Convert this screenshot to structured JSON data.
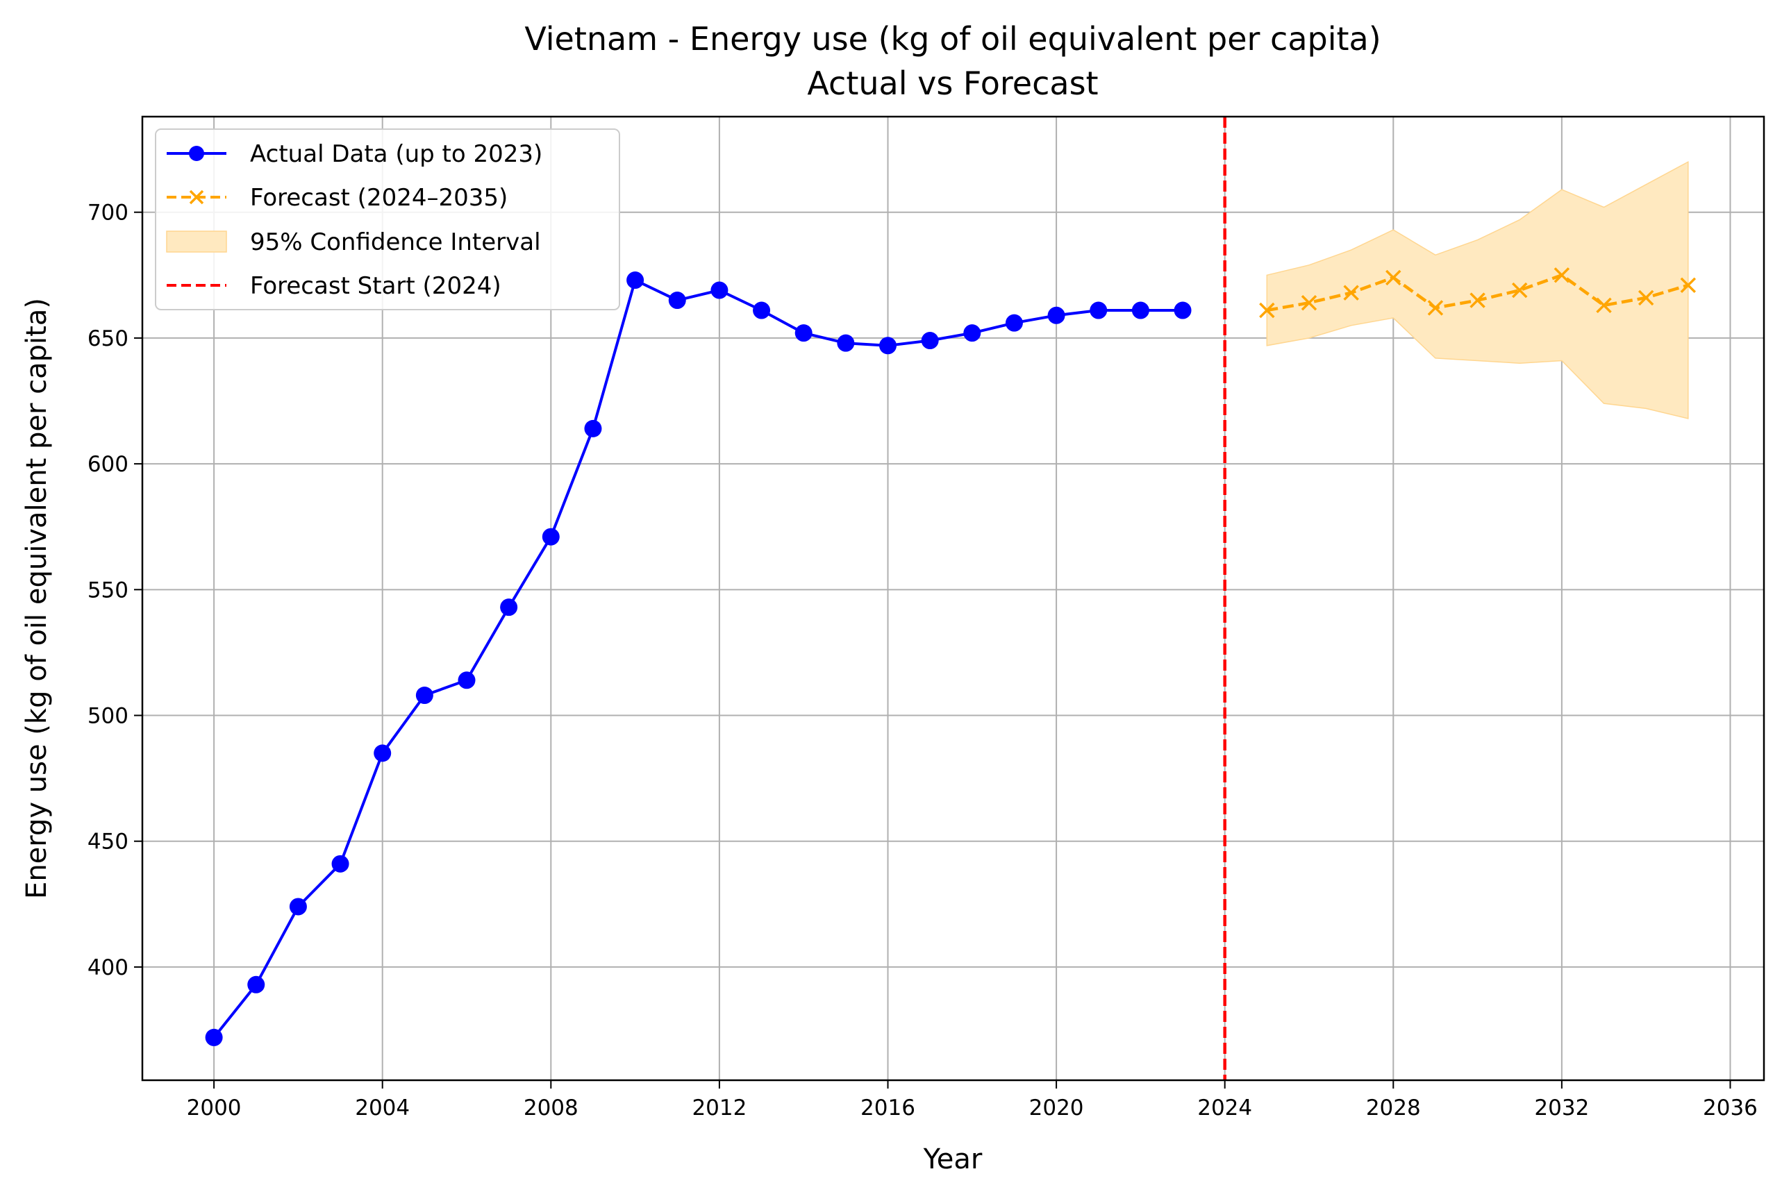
{
  "chart_data": {
    "type": "line",
    "title": "Vietnam - Energy use (kg of oil equivalent per capita)",
    "subtitle": "Actual vs Forecast",
    "xlabel": "Year",
    "ylabel": "Energy use (kg of oil equivalent per capita)",
    "xlim": [
      1998.3,
      2036.8
    ],
    "ylim": [
      355,
      738
    ],
    "x_ticks": [
      2000,
      2004,
      2008,
      2012,
      2016,
      2020,
      2024,
      2028,
      2032,
      2036
    ],
    "y_ticks": [
      400,
      450,
      500,
      550,
      600,
      650,
      700
    ],
    "grid": true,
    "legend_position": "top-left",
    "colors": {
      "actual": "#0000ff",
      "forecast": "#ffa500",
      "confidence": "#ffe9c0",
      "forecast_start": "#ff0000",
      "grid": "#b0b0b0"
    },
    "series": [
      {
        "name": "Actual Data (up to 2023)",
        "style": "solid-line-circle-markers",
        "x": [
          2000,
          2001,
          2002,
          2003,
          2004,
          2005,
          2006,
          2007,
          2008,
          2009,
          2010,
          2011,
          2012,
          2013,
          2014,
          2015,
          2016,
          2017,
          2018,
          2019,
          2020,
          2021,
          2022,
          2023
        ],
        "y": [
          372,
          393,
          424,
          441,
          485,
          508,
          514,
          543,
          571,
          614,
          673,
          665,
          669,
          661,
          652,
          648,
          647,
          649,
          652,
          656,
          659,
          661,
          661,
          661
        ]
      },
      {
        "name": "Forecast (2024–2035)",
        "style": "dashed-line-x-markers",
        "x": [
          2025,
          2026,
          2027,
          2028,
          2029,
          2030,
          2031,
          2032,
          2033,
          2034,
          2035
        ],
        "y": [
          661,
          664,
          668,
          674,
          662,
          665,
          669,
          675,
          663,
          666,
          671
        ]
      },
      {
        "name": "95% Confidence Interval",
        "style": "band",
        "x": [
          2025,
          2026,
          2027,
          2028,
          2029,
          2030,
          2031,
          2032,
          2033,
          2034,
          2035
        ],
        "lower": [
          647,
          650,
          655,
          658,
          642,
          641,
          640,
          641,
          624,
          622,
          618
        ],
        "upper": [
          675,
          679,
          685,
          693,
          683,
          689,
          697,
          709,
          702,
          711,
          720
        ]
      },
      {
        "name": "Forecast Start (2024)",
        "style": "vertical-dashed-line",
        "x": 2024
      }
    ]
  }
}
